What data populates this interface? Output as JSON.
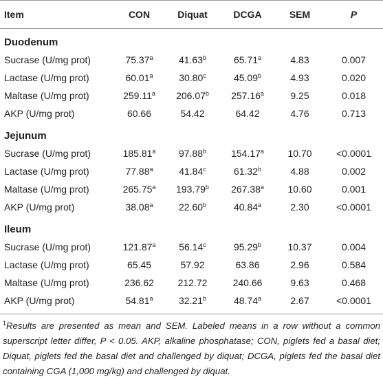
{
  "table": {
    "columns": [
      "Item",
      "CON",
      "Diquat",
      "DCGA",
      "SEM",
      "P"
    ],
    "sections": [
      {
        "title": "Duodenum",
        "rows": [
          {
            "item": "Sucrase (U/mg prot)",
            "cells": [
              {
                "text": "75.37",
                "sup": "a"
              },
              {
                "text": "41.63",
                "sup": "b"
              },
              {
                "text": "65.71",
                "sup": "a"
              },
              {
                "text": "4.83"
              },
              {
                "text": "0.007"
              }
            ]
          },
          {
            "item": "Lactase (U/mg prot)",
            "cells": [
              {
                "text": "60.01",
                "sup": "a"
              },
              {
                "text": "30.80",
                "sup": "c"
              },
              {
                "text": "45.09",
                "sup": "b"
              },
              {
                "text": "4.93"
              },
              {
                "text": "0.020"
              }
            ]
          },
          {
            "item": "Maltase (U/mg prot)",
            "cells": [
              {
                "text": "259.11",
                "sup": "a"
              },
              {
                "text": "206.07",
                "sup": "b"
              },
              {
                "text": "257.16",
                "sup": "a"
              },
              {
                "text": "9.25"
              },
              {
                "text": "0.018"
              }
            ]
          },
          {
            "item": "AKP (U/mg prot)",
            "cells": [
              {
                "text": "60.66"
              },
              {
                "text": "54.42"
              },
              {
                "text": "64.42"
              },
              {
                "text": "4.76"
              },
              {
                "text": "0.713"
              }
            ]
          }
        ]
      },
      {
        "title": "Jejunum",
        "rows": [
          {
            "item": "Sucrase (U/mg prot)",
            "cells": [
              {
                "text": "185.81",
                "sup": "a"
              },
              {
                "text": "97.88",
                "sup": "b"
              },
              {
                "text": "154.17",
                "sup": "a"
              },
              {
                "text": "10.70"
              },
              {
                "text": "<0.0001"
              }
            ]
          },
          {
            "item": "Lactase (U/mg prot)",
            "cells": [
              {
                "text": "77.88",
                "sup": "a"
              },
              {
                "text": "41.84",
                "sup": "c"
              },
              {
                "text": "61.32",
                "sup": "b"
              },
              {
                "text": "4.88"
              },
              {
                "text": "0.002"
              }
            ]
          },
          {
            "item": "Maltase (U/mg prot)",
            "cells": [
              {
                "text": "265.75",
                "sup": "a"
              },
              {
                "text": "193.79",
                "sup": "b"
              },
              {
                "text": "267.38",
                "sup": "a"
              },
              {
                "text": "10.60"
              },
              {
                "text": "0.001"
              }
            ]
          },
          {
            "item": "AKP (U/mg prot)",
            "cells": [
              {
                "text": "38.08",
                "sup": "a"
              },
              {
                "text": "22.60",
                "sup": "b"
              },
              {
                "text": "40.84",
                "sup": "a"
              },
              {
                "text": "2.30"
              },
              {
                "text": "<0.0001"
              }
            ]
          }
        ]
      },
      {
        "title": "Ileum",
        "rows": [
          {
            "item": "Sucrase (U/mg prot)",
            "cells": [
              {
                "text": "121.87",
                "sup": "a"
              },
              {
                "text": "56.14",
                "sup": "c"
              },
              {
                "text": "95.29",
                "sup": "b"
              },
              {
                "text": "10.37"
              },
              {
                "text": "0.004"
              }
            ]
          },
          {
            "item": "Lactase (U/mg prot)",
            "cells": [
              {
                "text": "65.45"
              },
              {
                "text": "57.92"
              },
              {
                "text": "63.86"
              },
              {
                "text": "2.96"
              },
              {
                "text": "0.584"
              }
            ]
          },
          {
            "item": "Maltase (U/mg prot)",
            "cells": [
              {
                "text": "236.62"
              },
              {
                "text": "212.72"
              },
              {
                "text": "240.66"
              },
              {
                "text": "9.63"
              },
              {
                "text": "0.468"
              }
            ]
          },
          {
            "item": "AKP (U/mg prot)",
            "cells": [
              {
                "text": "54.81",
                "sup": "a"
              },
              {
                "text": "32.21",
                "sup": "b"
              },
              {
                "text": "48.74",
                "sup": "a"
              },
              {
                "text": "2.67"
              },
              {
                "text": "<0.0001"
              }
            ]
          }
        ]
      }
    ]
  },
  "footnote": {
    "marker": "1",
    "text": "Results are presented as mean and SEM. Labeled means in a row without a common superscript letter differ, P < 0.05. AKP, alkaline phosphatase; CON, piglets fed a basal diet; Diquat, piglets fed the basal diet and challenged by diquat; DCGA, piglets fed the basal diet containing CGA (1,000 mg/kg) and challenged by diquat."
  }
}
